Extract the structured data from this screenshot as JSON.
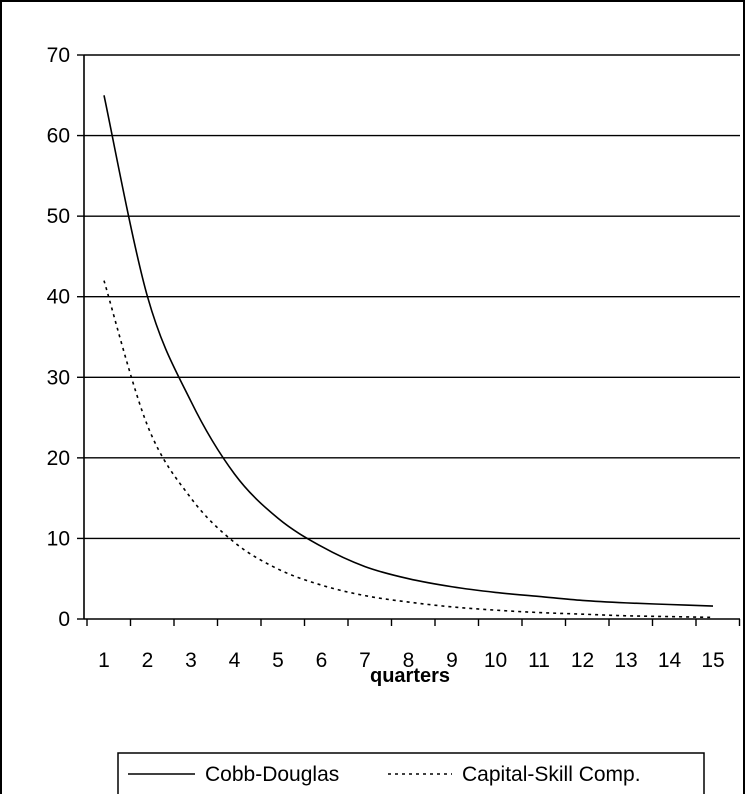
{
  "chart_data": {
    "type": "line",
    "title": "",
    "xlabel": "quarters",
    "ylabel": "",
    "x": [
      1,
      2,
      3,
      4,
      5,
      6,
      7,
      8,
      9,
      10,
      11,
      12,
      13,
      14,
      15
    ],
    "categories": [
      "1",
      "2",
      "3",
      "4",
      "5",
      "6",
      "7",
      "8",
      "9",
      "10",
      "11",
      "12",
      "13",
      "14",
      "15"
    ],
    "ylim": [
      0,
      70
    ],
    "yticks": [
      "0",
      "10",
      "20",
      "30",
      "40",
      "50",
      "60",
      "70"
    ],
    "grid": "horizontal",
    "legend_position": "bottom",
    "series": [
      {
        "name": "Cobb-Douglas",
        "style": "solid",
        "color": "#000000",
        "values": [
          65,
          40,
          27,
          18,
          12.5,
          9,
          6.5,
          5,
          4,
          3.3,
          2.8,
          2.3,
          2.0,
          1.8,
          1.6
        ]
      },
      {
        "name": "Capital-Skill Comp.",
        "style": "dotted",
        "color": "#000000",
        "values": [
          42,
          24,
          15,
          9.5,
          6.2,
          4.2,
          2.9,
          2.1,
          1.5,
          1.1,
          0.8,
          0.6,
          0.4,
          0.3,
          0.2
        ]
      }
    ]
  }
}
